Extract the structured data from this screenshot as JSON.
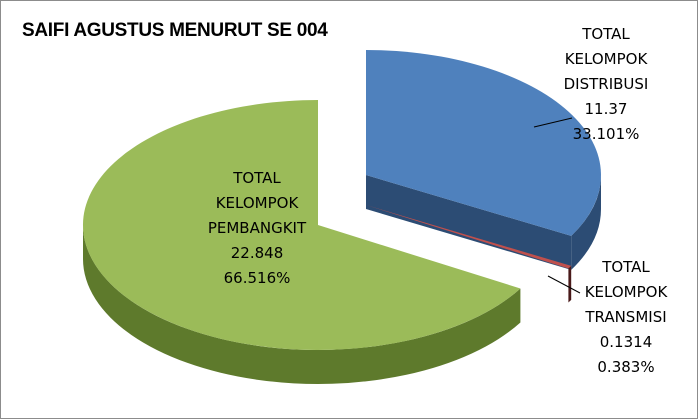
{
  "chart_data": {
    "type": "pie",
    "style": "3d-exploded",
    "title": "SAIFI AGUSTUS MENURUT SE 004",
    "slices": [
      {
        "name_lines": [
          "TOTAL",
          "KELOMPOK",
          "DISTRIBUSI"
        ],
        "value": "11.37",
        "percent": "33.101%",
        "color": "#4f81bd",
        "dark_color": "#2c4c74"
      },
      {
        "name_lines": [
          "TOTAL",
          "KELOMPOK",
          "TRANSMISI"
        ],
        "value": "0.1314",
        "percent": "0.383%",
        "color": "#c0504d",
        "dark_color": "#4a1a1a"
      },
      {
        "name_lines": [
          "TOTAL",
          "KELOMPOK",
          "PEMBANGKIT"
        ],
        "value": "22.848",
        "percent": "66.516%",
        "color": "#9bbb59",
        "dark_color": "#5e7a2c"
      }
    ],
    "legend": "none",
    "border_color": "#8c8c8c"
  }
}
